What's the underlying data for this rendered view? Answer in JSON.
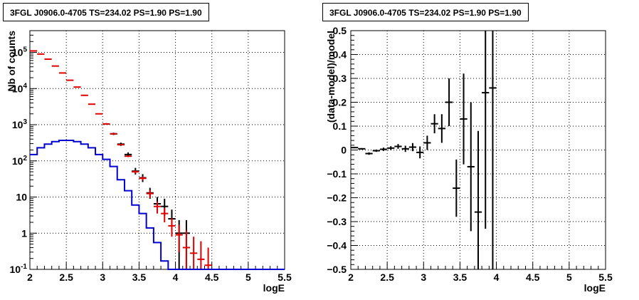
{
  "colors": {
    "data": "#000000",
    "model_points": "#e00000",
    "source_component": "#0000d0",
    "frame": "#000000",
    "grid": "#000000"
  },
  "chart_data": [
    {
      "type": "scatter",
      "title": "3FGL J0906.0-4705 TS=234.02 PS=1.90 PS=1.90",
      "xlabel": "logE",
      "ylabel": "Nb of counts",
      "xlim": [
        2,
        5.5
      ],
      "ylim": [
        0.1,
        400000
      ],
      "yscale": "log",
      "grid": true,
      "x_ticks": [
        "2",
        "2.5",
        "3",
        "3.5",
        "4",
        "4.5",
        "5",
        "5.5"
      ],
      "y_ticks": [
        "10^-1",
        "1",
        "10",
        "10^2",
        "10^3",
        "10^4",
        "10^5"
      ],
      "bin_width": 0.1,
      "x": [
        2.05,
        2.15,
        2.25,
        2.35,
        2.45,
        2.55,
        2.65,
        2.75,
        2.85,
        2.95,
        3.05,
        3.15,
        3.25,
        3.35,
        3.45,
        3.55,
        3.65,
        3.75,
        3.85,
        3.95,
        4.05,
        4.15,
        4.25,
        4.35,
        4.45,
        4.55,
        4.65,
        4.75,
        4.85,
        4.95,
        5.05,
        5.15,
        5.25,
        5.35,
        5.45
      ],
      "series": [
        {
          "name": "data",
          "style": "points",
          "points": [
            {
              "x": 3.05,
              "y": 1050,
              "lo": 1000,
              "hi": 1110
            },
            {
              "x": 3.15,
              "y": 560,
              "lo": 520,
              "hi": 600
            },
            {
              "x": 3.25,
              "y": 290,
              "lo": 260,
              "hi": 320
            },
            {
              "x": 3.35,
              "y": 150,
              "lo": 128,
              "hi": 172
            },
            {
              "x": 3.45,
              "y": 52,
              "lo": 42,
              "hi": 64
            },
            {
              "x": 3.55,
              "y": 34,
              "lo": 26,
              "hi": 43
            },
            {
              "x": 3.65,
              "y": 13,
              "lo": 9,
              "hi": 18
            },
            {
              "x": 3.75,
              "y": 6.5,
              "lo": 4,
              "hi": 10
            },
            {
              "x": 3.85,
              "y": 5.5,
              "lo": 3,
              "hi": 9
            },
            {
              "x": 3.95,
              "y": 2.5,
              "lo": 1.2,
              "hi": 4.5
            },
            {
              "x": 4.05,
              "y": 1.0,
              "lo": 0.1,
              "hi": 2.3
            },
            {
              "x": 4.15,
              "y": 1.0,
              "lo": 0.1,
              "hi": 2.3
            }
          ]
        },
        {
          "name": "model",
          "style": "points",
          "points": [
            {
              "x": 2.05,
              "y": 110000,
              "lo": 110000,
              "hi": 110000
            },
            {
              "x": 2.15,
              "y": 90000,
              "lo": 90000,
              "hi": 90000
            },
            {
              "x": 2.25,
              "y": 65000,
              "lo": 65000,
              "hi": 65000
            },
            {
              "x": 2.35,
              "y": 42000,
              "lo": 42000,
              "hi": 42000
            },
            {
              "x": 2.45,
              "y": 27000,
              "lo": 27000,
              "hi": 27000
            },
            {
              "x": 2.55,
              "y": 17000,
              "lo": 17000,
              "hi": 17000
            },
            {
              "x": 2.65,
              "y": 11000,
              "lo": 11000,
              "hi": 11000
            },
            {
              "x": 2.75,
              "y": 6500,
              "lo": 6500,
              "hi": 6500
            },
            {
              "x": 2.85,
              "y": 3700,
              "lo": 3700,
              "hi": 3700
            },
            {
              "x": 2.95,
              "y": 2000,
              "lo": 2000,
              "hi": 2000
            },
            {
              "x": 3.05,
              "y": 1050,
              "lo": 1050,
              "hi": 1050
            },
            {
              "x": 3.15,
              "y": 560,
              "lo": 560,
              "hi": 560
            },
            {
              "x": 3.25,
              "y": 280,
              "lo": 280,
              "hi": 280
            },
            {
              "x": 3.35,
              "y": 135,
              "lo": 135,
              "hi": 135
            },
            {
              "x": 3.45,
              "y": 50,
              "lo": 45,
              "hi": 55
            },
            {
              "x": 3.55,
              "y": 33,
              "lo": 29,
              "hi": 37
            },
            {
              "x": 3.65,
              "y": 12.5,
              "lo": 9.5,
              "hi": 15.5
            },
            {
              "x": 3.75,
              "y": 5.5,
              "lo": 3.5,
              "hi": 7.5
            },
            {
              "x": 3.85,
              "y": 3.5,
              "lo": 2,
              "hi": 5
            },
            {
              "x": 3.95,
              "y": 1.6,
              "lo": 0.8,
              "hi": 2.6
            },
            {
              "x": 4.05,
              "y": 0.9,
              "lo": 0.3,
              "hi": 1.7
            },
            {
              "x": 4.15,
              "y": 0.4,
              "lo": 0.1,
              "hi": 1.2
            },
            {
              "x": 4.25,
              "y": 0.28,
              "lo": 0.1,
              "hi": 0.8
            },
            {
              "x": 4.35,
              "y": 0.19,
              "lo": 0.1,
              "hi": 0.6
            },
            {
              "x": 4.45,
              "y": 0.13,
              "lo": 0.1,
              "hi": 0.4
            }
          ]
        },
        {
          "name": "source",
          "style": "step",
          "values": [
            150,
            230,
            290,
            340,
            370,
            370,
            340,
            290,
            230,
            150,
            110,
            70,
            30,
            15,
            6,
            3.5,
            1.4,
            0.55,
            0.17,
            0.1,
            0.1,
            0.1,
            0.1,
            0.1,
            0.1,
            0.1,
            0.1,
            0.1,
            0.1,
            0.1,
            0.1,
            0.1,
            0.1,
            0.1,
            0.1
          ]
        }
      ]
    },
    {
      "type": "scatter",
      "title": "3FGL J0906.0-4705 TS=234.02 PS=1.90 PS=1.90",
      "xlabel": "logE",
      "ylabel": "(data-model)/model",
      "xlim": [
        2,
        5.5
      ],
      "ylim": [
        -0.5,
        0.5
      ],
      "yscale": "linear",
      "grid": true,
      "x_ticks": [
        "2",
        "2.5",
        "3",
        "3.5",
        "4",
        "4.5",
        "5",
        "5.5"
      ],
      "y_ticks": [
        "-0.5",
        "-0.4",
        "-0.3",
        "-0.2",
        "-0.1",
        "0",
        "0.1",
        "0.2",
        "0.3",
        "0.4",
        "0.5"
      ],
      "bin_width": 0.1,
      "series": [
        {
          "name": "residuals",
          "style": "points",
          "points": [
            {
              "x": 2.05,
              "y": 0.01,
              "lo": 0.008,
              "hi": 0.012
            },
            {
              "x": 2.15,
              "y": 0.005,
              "lo": 0.002,
              "hi": 0.008
            },
            {
              "x": 2.25,
              "y": -0.015,
              "lo": -0.02,
              "hi": -0.01
            },
            {
              "x": 2.35,
              "y": -0.003,
              "lo": -0.008,
              "hi": 0.002
            },
            {
              "x": 2.45,
              "y": 0.003,
              "lo": -0.004,
              "hi": 0.01
            },
            {
              "x": 2.55,
              "y": 0.008,
              "lo": 0.0,
              "hi": 0.016
            },
            {
              "x": 2.65,
              "y": 0.015,
              "lo": 0.005,
              "hi": 0.025
            },
            {
              "x": 2.75,
              "y": 0.005,
              "lo": -0.008,
              "hi": 0.018
            },
            {
              "x": 2.85,
              "y": 0.012,
              "lo": -0.005,
              "hi": 0.029
            },
            {
              "x": 2.95,
              "y": -0.01,
              "lo": -0.035,
              "hi": 0.015
            },
            {
              "x": 3.05,
              "y": 0.03,
              "lo": 0.0,
              "hi": 0.06
            },
            {
              "x": 3.15,
              "y": 0.11,
              "lo": 0.07,
              "hi": 0.15
            },
            {
              "x": 3.25,
              "y": 0.09,
              "lo": 0.03,
              "hi": 0.15
            },
            {
              "x": 3.35,
              "y": 0.2,
              "lo": 0.1,
              "hi": 0.3
            },
            {
              "x": 3.45,
              "y": -0.16,
              "lo": -0.28,
              "hi": -0.04
            },
            {
              "x": 3.55,
              "y": 0.13,
              "lo": -0.06,
              "hi": 0.32
            },
            {
              "x": 3.65,
              "y": -0.07,
              "lo": -0.34,
              "hi": 0.2
            },
            {
              "x": 3.75,
              "y": -0.26,
              "lo": -0.5,
              "hi": 0.08
            },
            {
              "x": 3.85,
              "y": 0.24,
              "lo": -0.33,
              "hi": 0.5
            },
            {
              "x": 3.95,
              "y": 0.26,
              "lo": -0.5,
              "hi": 0.5
            }
          ]
        }
      ]
    }
  ]
}
